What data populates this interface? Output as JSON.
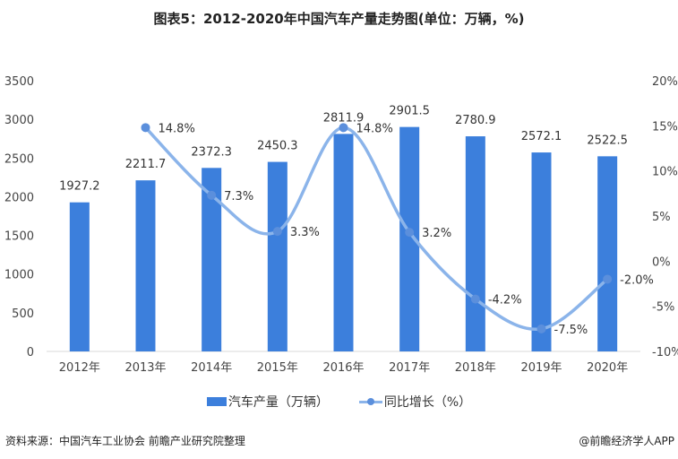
{
  "chart_data": {
    "type": "bar+line",
    "title": "图表5：2012-2020年中国汽车产量走势图(单位：万辆，%)",
    "categories": [
      "2012年",
      "2013年",
      "2014年",
      "2015年",
      "2016年",
      "2017年",
      "2018年",
      "2019年",
      "2020年"
    ],
    "series": [
      {
        "name": "汽车产量（万辆）",
        "type": "bar",
        "axis": "left",
        "values": [
          1927.2,
          2211.7,
          2372.3,
          2450.3,
          2811.9,
          2901.5,
          2780.9,
          2572.1,
          2522.5
        ],
        "labels": [
          "1927.2",
          "2211.7",
          "2372.3",
          "2450.3",
          "2811.9",
          "2901.5",
          "2780.9",
          "2572.1",
          "2522.5"
        ]
      },
      {
        "name": "同比增长（%）",
        "type": "line",
        "axis": "right",
        "values": [
          null,
          14.8,
          7.3,
          3.3,
          14.8,
          3.2,
          -4.2,
          -7.5,
          -2.0
        ],
        "labels": [
          "",
          "14.8%",
          "7.3%",
          "3.3%",
          "14.8%",
          "3.2%",
          "-4.2%",
          "-7.5%",
          "-2.0%"
        ]
      }
    ],
    "left_axis": {
      "range": [
        0,
        3500
      ],
      "ticks": [
        "0",
        "500",
        "1000",
        "1500",
        "2000",
        "2500",
        "3000",
        "3500"
      ]
    },
    "right_axis": {
      "range": [
        -10,
        20
      ],
      "ticks": [
        "-10%",
        "-5%",
        "0%",
        "5%",
        "10%",
        "15%",
        "20%"
      ]
    },
    "grid": false,
    "legend": "bottom",
    "colors": {
      "bar": "#3c7fdc",
      "line": "#8bb4ea",
      "marker": "#5b8fdc"
    }
  },
  "footer": {
    "source": "资料来源：中国汽车工业协会 前瞻产业研究院整理",
    "credit": "@前瞻经济学人APP"
  }
}
